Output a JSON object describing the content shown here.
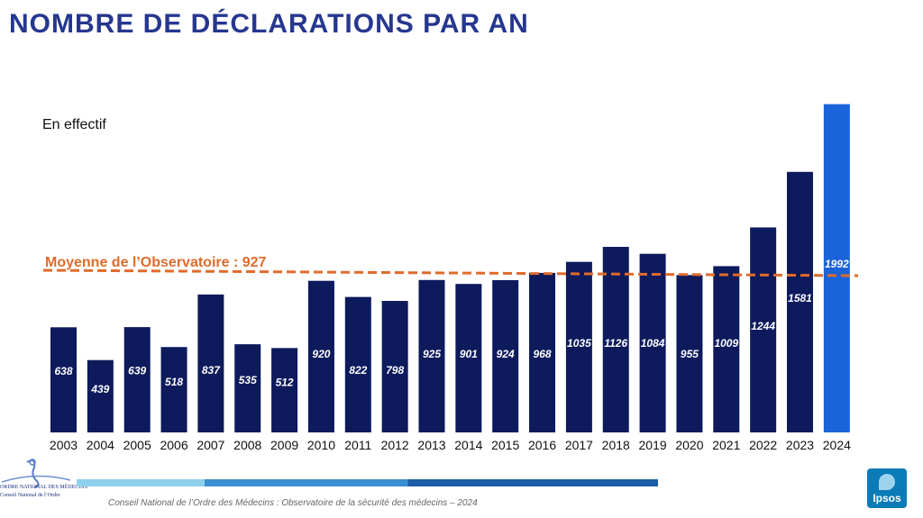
{
  "title": "NOMBRE DE DÉCLARATIONS PAR AN",
  "subtitle": "En effectif",
  "average": {
    "label": "Moyenne de l’Observatoire : 927",
    "value": 927,
    "color": "#e06b2b"
  },
  "colors": {
    "bar": "#0d1a5c",
    "highlight": "#1a63d8",
    "title": "#26378f"
  },
  "chart_data": {
    "type": "bar",
    "categories": [
      "2003",
      "2004",
      "2005",
      "2006",
      "2007",
      "2008",
      "2009",
      "2010",
      "2011",
      "2012",
      "2013",
      "2014",
      "2015",
      "2016",
      "2017",
      "2018",
      "2019",
      "2020",
      "2021",
      "2022",
      "2023",
      "2024"
    ],
    "values": [
      638,
      439,
      639,
      518,
      837,
      535,
      512,
      920,
      822,
      798,
      925,
      901,
      924,
      968,
      1035,
      1126,
      1084,
      955,
      1009,
      1244,
      1581,
      1992
    ],
    "highlight_index": 21,
    "ylim": [
      0,
      2050
    ],
    "grid": false
  },
  "footer": {
    "source": "Conseil National de l’Ordre des Médecins : Observatoire de la sécurité des médecins – 2024",
    "logo_line1": "ORDRE NATIONAL DES MÉDECINS",
    "logo_line2": "Conseil National de l’Ordre",
    "brand": "Ipsos"
  }
}
